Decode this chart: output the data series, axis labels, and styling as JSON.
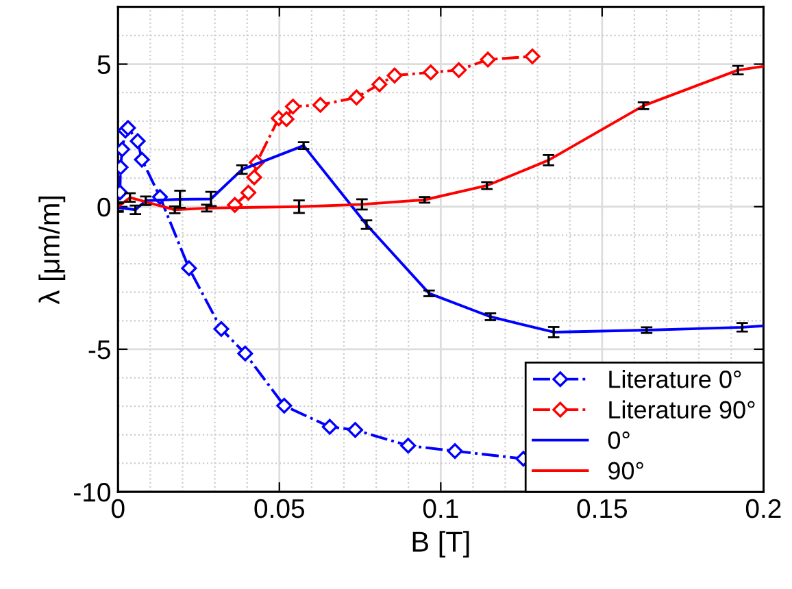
{
  "chart_data": {
    "type": "line",
    "xlabel": "B [T]",
    "ylabel": "λ [μm/m]",
    "xlim": [
      0,
      0.2
    ],
    "ylim": [
      -10,
      7
    ],
    "xticks": [
      0,
      0.05,
      0.1,
      0.15,
      0.2
    ],
    "yticks": [
      -10,
      -5,
      0,
      5
    ],
    "grid": true,
    "legend": "bottom right",
    "series": [
      {
        "name": "Literature 0°",
        "color": "#0000ff",
        "marker": "diamond",
        "line_style": "dashdot",
        "x": [
          0.0006,
          0.0008,
          0.0013,
          0.0023,
          0.0031,
          0.0061,
          0.0074,
          0.013,
          0.022,
          0.032,
          0.0394,
          0.0515,
          0.0656,
          0.0735,
          0.0899,
          0.1044,
          0.1256
        ],
        "values": [
          0.5,
          1.38,
          2.01,
          2.67,
          2.76,
          2.3,
          1.65,
          0.34,
          -2.16,
          -4.29,
          -5.15,
          -6.98,
          -7.72,
          -7.83,
          -8.38,
          -8.57,
          -8.84
        ]
      },
      {
        "name": "Literature 90°",
        "color": "#ff0000",
        "marker": "diamond",
        "line_style": "dashdot",
        "x": [
          0.0362,
          0.0404,
          0.0422,
          0.043,
          0.0498,
          0.0522,
          0.0542,
          0.0627,
          0.0739,
          0.081,
          0.0857,
          0.0969,
          0.1056,
          0.1146,
          0.1284
        ],
        "values": [
          0.06,
          0.49,
          1.03,
          1.55,
          3.1,
          3.07,
          3.51,
          3.57,
          3.83,
          4.29,
          4.6,
          4.71,
          4.79,
          5.16,
          5.27
        ]
      },
      {
        "name": "0°",
        "color": "#0000ff",
        "marker": "none",
        "line_style": "solid",
        "x": [
          0,
          0.0054,
          0.0086,
          0.0192,
          0.0288,
          0.0384,
          0.0575,
          0.077,
          0.0964,
          0.1154,
          0.135,
          0.1638,
          0.1934,
          0.2
        ],
        "values": [
          -0.03,
          -0.11,
          0.21,
          0.26,
          0.27,
          1.3,
          2.14,
          -0.63,
          -3.04,
          -3.86,
          -4.4,
          -4.33,
          -4.23,
          -4.18
        ],
        "errors": [
          0.15,
          0.15,
          0.15,
          0.3,
          0.25,
          0.15,
          0.12,
          0.15,
          0.1,
          0.12,
          0.18,
          0.1,
          0.15,
          null
        ]
      },
      {
        "name": "90°",
        "color": "#ff0000",
        "marker": "none",
        "line_style": "solid",
        "x": [
          0,
          0.0037,
          0.0176,
          0.0275,
          0.0561,
          0.0756,
          0.095,
          0.1143,
          0.1334,
          0.1628,
          0.1921,
          0.2
        ],
        "values": [
          0,
          0.32,
          -0.11,
          -0.05,
          0,
          0.08,
          0.24,
          0.74,
          1.63,
          3.54,
          4.79,
          4.92
        ],
        "errors": [
          0.15,
          0.15,
          0.12,
          0.12,
          0.22,
          0.18,
          0.1,
          0.12,
          0.18,
          0.12,
          0.15,
          null
        ]
      }
    ]
  }
}
